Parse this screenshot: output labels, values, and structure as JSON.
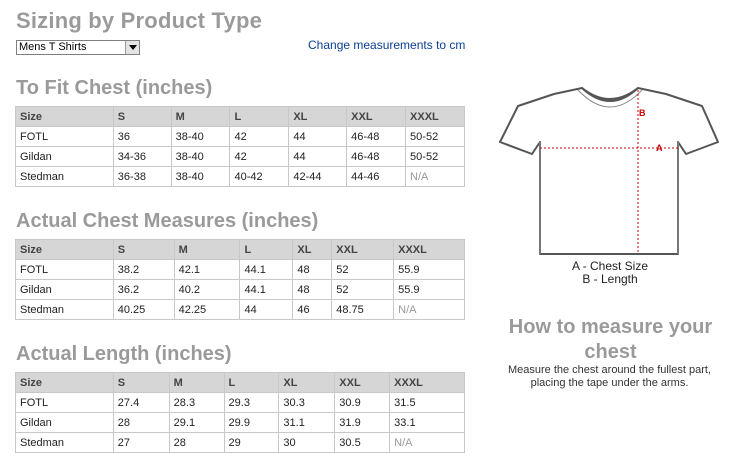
{
  "page_title": "Sizing by Product Type",
  "product_select": {
    "selected": "Mens T Shirts"
  },
  "change_link": "Change measurements to cm",
  "tables": [
    {
      "title": "To Fit Chest (inches)",
      "headers": [
        "Size",
        "S",
        "M",
        "L",
        "XL",
        "XXL",
        "XXXL"
      ],
      "rows": [
        [
          "FOTL",
          "36",
          "38-40",
          "42",
          "44",
          "46-48",
          "50-52"
        ],
        [
          "Gildan",
          "34-36",
          "38-40",
          "42",
          "44",
          "46-48",
          "50-52"
        ],
        [
          "Stedman",
          "36-38",
          "38-40",
          "40-42",
          "42-44",
          "44-46",
          "N/A"
        ]
      ]
    },
    {
      "title": "Actual Chest Measures (inches)",
      "headers": [
        "Size",
        "S",
        "M",
        "L",
        "XL",
        "XXL",
        "XXXL"
      ],
      "rows": [
        [
          "FOTL",
          "38.2",
          "42.1",
          "44.1",
          "48",
          "52",
          "55.9"
        ],
        [
          "Gildan",
          "36.2",
          "40.2",
          "44.1",
          "48",
          "52",
          "55.9"
        ],
        [
          "Stedman",
          "40.25",
          "42.25",
          "44",
          "46",
          "48.75",
          "N/A"
        ]
      ]
    },
    {
      "title": "Actual Length (inches)",
      "headers": [
        "Size",
        "S",
        "M",
        "L",
        "XL",
        "XXL",
        "XXXL"
      ],
      "rows": [
        [
          "FOTL",
          "27.4",
          "28.3",
          "29.3",
          "30.3",
          "30.9",
          "31.5"
        ],
        [
          "Gildan",
          "28",
          "29.1",
          "29.9",
          "31.1",
          "31.9",
          "33.1"
        ],
        [
          "Stedman",
          "27",
          "28",
          "29",
          "30",
          "30.5",
          "N/A"
        ]
      ]
    }
  ],
  "diagram": {
    "marker_a": "A",
    "marker_b": "B",
    "caption_a": "A - Chest Size",
    "caption_b": "B - Length",
    "marker_color": "#cc0000"
  },
  "howto": {
    "title": "How to measure your chest",
    "description": "Measure the chest around the fullest part, placing the tape under the arms."
  }
}
